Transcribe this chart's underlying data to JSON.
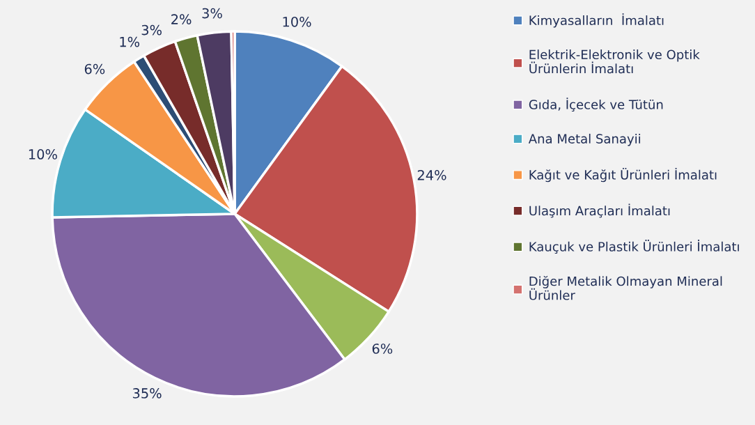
{
  "chart_data": {
    "type": "pie",
    "categories": [
      "Kimyasalların  İmalatı",
      "Elektrik-Elektronik ve Optik\nÜrünlerin İmalatı",
      null,
      "Gıda, İçecek ve Tütün",
      "Ana Metal Sanayii",
      "Kağıt ve Kağıt Ürünleri İmalatı",
      null,
      "Ulaşım Araçları İmalatı",
      "Kauçuk ve Plastik Ürünleri İmalatı",
      null,
      "Diğer Metalik Olmayan Mineral\nÜrünler"
    ],
    "values": [
      10,
      24,
      5.7,
      35,
      10,
      6,
      1,
      3,
      2,
      3,
      0.3
    ],
    "value_labels": [
      "10%",
      "24%",
      "6%",
      "35%",
      "10%",
      "6%",
      "1%",
      "3%",
      "2%",
      "3%",
      null
    ],
    "colors": [
      "#4f81bd",
      "#c0504d",
      "#9bbb59",
      "#8064a2",
      "#4bacc6",
      "#f79646",
      "#2c4d75",
      "#772c2a",
      "#5f7530",
      "#4d3b62",
      "#d4726f"
    ],
    "legend": "right"
  }
}
